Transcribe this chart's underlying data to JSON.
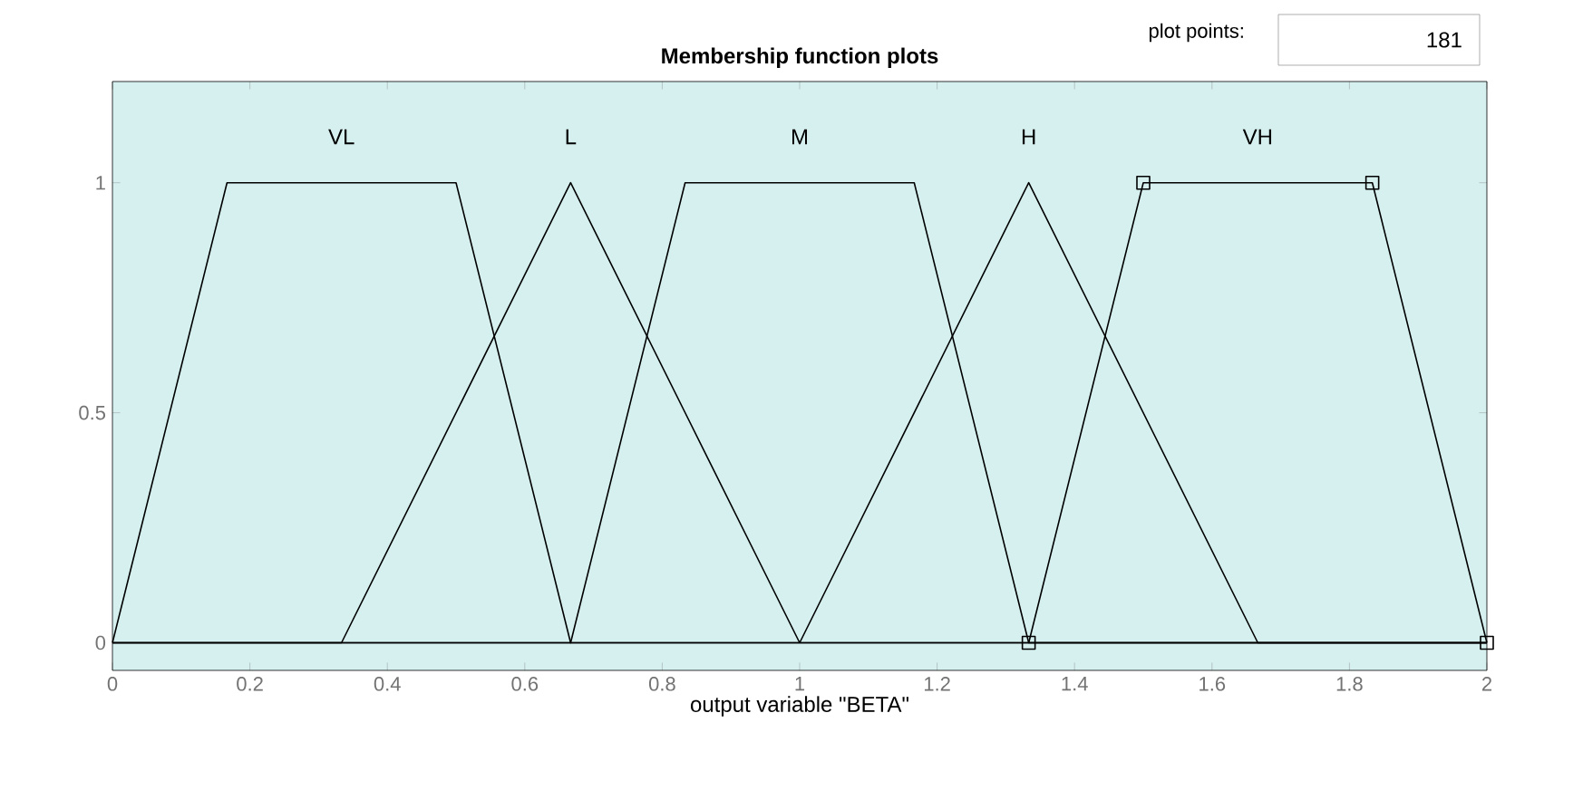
{
  "chart_data": {
    "type": "line",
    "title": "Membership function plots",
    "xlabel": "output variable \"BETA\"",
    "xlim": [
      0,
      2
    ],
    "ylim": [
      -0.06,
      1.22
    ],
    "xticks": [
      0,
      0.2,
      0.4,
      0.6,
      0.8,
      1,
      1.2,
      1.4,
      1.6,
      1.8,
      2
    ],
    "yticks": [
      0,
      0.5,
      1
    ],
    "annotations": [
      "plot points:",
      "181"
    ],
    "series": [
      {
        "name": "VL",
        "color": "#000000",
        "x": [
          0,
          0.1667,
          0.5,
          0.6667,
          2
        ],
        "values": [
          0,
          1,
          1,
          0,
          0
        ]
      },
      {
        "name": "L",
        "color": "#000000",
        "x": [
          0,
          0.3333,
          0.6667,
          1,
          2
        ],
        "values": [
          0,
          0,
          1,
          0,
          0
        ]
      },
      {
        "name": "M",
        "color": "#000000",
        "x": [
          0,
          0.6667,
          0.8333,
          1.1667,
          1.3333,
          2
        ],
        "values": [
          0,
          0,
          1,
          1,
          0,
          0
        ]
      },
      {
        "name": "H",
        "color": "#000000",
        "x": [
          0,
          1,
          1.3333,
          1.6667,
          2
        ],
        "values": [
          0,
          0,
          1,
          0,
          0
        ]
      },
      {
        "name": "VH",
        "color": "#000000",
        "x": [
          1.3333,
          1.5,
          1.8333,
          2
        ],
        "values": [
          0,
          1,
          1,
          0
        ],
        "marker": "square"
      }
    ]
  }
}
